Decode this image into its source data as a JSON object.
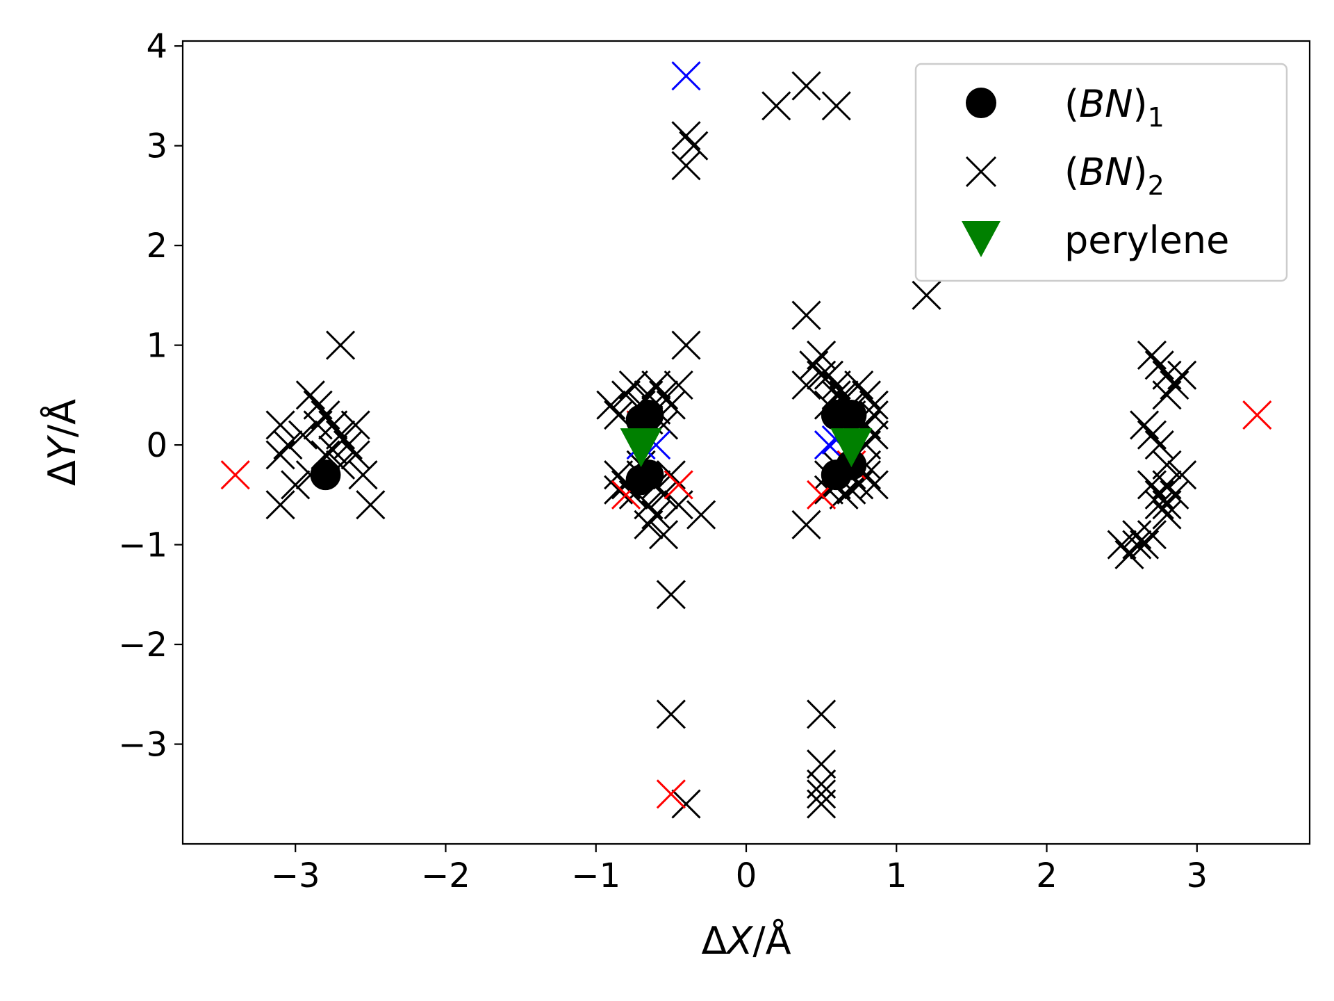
{
  "chart_data": {
    "type": "scatter",
    "xlabel": {
      "prefix": "Δ",
      "var": "X",
      "unit": "/Å"
    },
    "ylabel": {
      "prefix": "Δ",
      "var": "Y",
      "unit": "/Å"
    },
    "xlim": [
      -3.75,
      3.75
    ],
    "ylim": [
      -4.0,
      4.05
    ],
    "xticks": [
      -3,
      -2,
      -1,
      0,
      1,
      2,
      3
    ],
    "yticks": [
      -3,
      -2,
      -1,
      0,
      1,
      2,
      3,
      4
    ],
    "xtick_labels": [
      "−3",
      "−2",
      "−1",
      "0",
      "1",
      "2",
      "3"
    ],
    "ytick_labels": [
      "−3",
      "−2",
      "−1",
      "0",
      "1",
      "2",
      "3",
      "4"
    ],
    "grid": false,
    "legend_position": "top-right",
    "legend": [
      {
        "series": "bn1",
        "base": "(",
        "it": "BN",
        "close": ")",
        "sub": "1"
      },
      {
        "series": "bn2",
        "base": "(",
        "it": "BN",
        "close": ")",
        "sub": "2"
      },
      {
        "series": "perylene",
        "text": "perylene"
      }
    ],
    "colors": {
      "black": "#000000",
      "red": "#ff0000",
      "blue": "#0000ff",
      "green": "#008000"
    },
    "series": [
      {
        "id": "bn2",
        "marker": "x",
        "color": "#000000",
        "points": [
          [
            -3.1,
            0.2
          ],
          [
            -3.05,
            0.0
          ],
          [
            -2.95,
            0.1
          ],
          [
            -2.9,
            0.5
          ],
          [
            -2.85,
            0.4
          ],
          [
            -2.8,
            0.3
          ],
          [
            -2.75,
            0.2
          ],
          [
            -2.7,
            0.1
          ],
          [
            -2.65,
            0.0
          ],
          [
            -2.6,
            -0.1
          ],
          [
            -2.55,
            -0.3
          ],
          [
            -2.6,
            0.2
          ],
          [
            -2.7,
            -0.2
          ],
          [
            -2.8,
            -0.1
          ],
          [
            -2.85,
            0.2
          ],
          [
            -3.0,
            -0.4
          ],
          [
            -3.1,
            -0.6
          ],
          [
            -2.5,
            -0.6
          ],
          [
            -2.7,
            1.0
          ],
          [
            -2.9,
            -0.3
          ],
          [
            -2.75,
            -0.05
          ],
          [
            -3.1,
            -0.1
          ],
          [
            -0.9,
            0.4
          ],
          [
            -0.85,
            0.3
          ],
          [
            -0.8,
            0.5
          ],
          [
            -0.75,
            0.6
          ],
          [
            -0.7,
            0.4
          ],
          [
            -0.65,
            0.5
          ],
          [
            -0.6,
            0.6
          ],
          [
            -0.55,
            0.5
          ],
          [
            -0.5,
            0.4
          ],
          [
            -0.45,
            0.6
          ],
          [
            -0.65,
            0.25
          ],
          [
            -0.6,
            0.35
          ],
          [
            -0.55,
            0.2
          ],
          [
            -0.85,
            -0.3
          ],
          [
            -0.8,
            -0.4
          ],
          [
            -0.75,
            -0.5
          ],
          [
            -0.7,
            -0.3
          ],
          [
            -0.65,
            -0.6
          ],
          [
            -0.6,
            -0.4
          ],
          [
            -0.55,
            -0.5
          ],
          [
            -0.6,
            -0.7
          ],
          [
            -0.65,
            -0.8
          ],
          [
            -0.55,
            -0.9
          ],
          [
            -0.5,
            -0.3
          ],
          [
            -0.45,
            -0.6
          ],
          [
            -0.3,
            -0.7
          ],
          [
            -0.85,
            -0.45
          ],
          [
            -0.7,
            -0.2
          ],
          [
            -0.4,
            1.0
          ],
          [
            -0.4,
            3.1
          ],
          [
            -0.35,
            3.0
          ],
          [
            -0.4,
            2.8
          ],
          [
            -0.5,
            -1.5
          ],
          [
            -0.5,
            -2.7
          ],
          [
            -0.4,
            -3.6
          ],
          [
            0.2,
            3.4
          ],
          [
            0.4,
            3.6
          ],
          [
            0.6,
            3.4
          ],
          [
            0.4,
            1.3
          ],
          [
            0.4,
            0.6
          ],
          [
            0.45,
            0.8
          ],
          [
            0.5,
            0.9
          ],
          [
            0.55,
            0.7
          ],
          [
            0.6,
            0.6
          ],
          [
            0.65,
            0.5
          ],
          [
            0.7,
            0.4
          ],
          [
            0.75,
            0.6
          ],
          [
            0.8,
            0.5
          ],
          [
            0.85,
            0.4
          ],
          [
            0.8,
            0.2
          ],
          [
            0.85,
            0.3
          ],
          [
            0.8,
            0.0
          ],
          [
            0.85,
            0.1
          ],
          [
            0.7,
            0.3
          ],
          [
            0.6,
            0.5
          ],
          [
            0.5,
            0.7
          ],
          [
            0.55,
            0.4
          ],
          [
            0.65,
            0.45
          ],
          [
            0.55,
            -0.3
          ],
          [
            0.6,
            -0.4
          ],
          [
            0.65,
            -0.5
          ],
          [
            0.7,
            -0.3
          ],
          [
            0.75,
            -0.4
          ],
          [
            0.8,
            -0.3
          ],
          [
            0.85,
            -0.4
          ],
          [
            0.6,
            -0.2
          ],
          [
            0.7,
            -0.45
          ],
          [
            0.4,
            -0.8
          ],
          [
            0.8,
            -0.2
          ],
          [
            0.55,
            -0.45
          ],
          [
            0.5,
            -2.7
          ],
          [
            0.5,
            -3.2
          ],
          [
            0.5,
            -3.4
          ],
          [
            0.5,
            -3.5
          ],
          [
            0.5,
            -3.6
          ],
          [
            1.2,
            1.5
          ],
          [
            2.7,
            0.9
          ],
          [
            2.75,
            0.8
          ],
          [
            2.8,
            0.7
          ],
          [
            2.85,
            0.6
          ],
          [
            2.9,
            0.7
          ],
          [
            2.8,
            0.5
          ],
          [
            2.65,
            0.2
          ],
          [
            2.7,
            0.1
          ],
          [
            2.75,
            0.0
          ],
          [
            2.8,
            -0.2
          ],
          [
            2.9,
            -0.3
          ],
          [
            2.7,
            -0.4
          ],
          [
            2.75,
            -0.5
          ],
          [
            2.8,
            -0.6
          ],
          [
            2.85,
            -0.5
          ],
          [
            2.8,
            -0.7
          ],
          [
            2.75,
            -0.6
          ],
          [
            2.7,
            -0.9
          ],
          [
            2.65,
            -1.0
          ],
          [
            2.6,
            -1.0
          ],
          [
            2.55,
            -1.1
          ],
          [
            2.5,
            -1.0
          ],
          [
            2.6,
            -0.9
          ],
          [
            2.8,
            -0.4
          ]
        ]
      },
      {
        "id": "red",
        "marker": "x",
        "color": "#ff0000",
        "points": [
          [
            -3.4,
            -0.3
          ],
          [
            -0.7,
            0.2
          ],
          [
            -0.8,
            -0.5
          ],
          [
            -0.45,
            -0.4
          ],
          [
            -0.5,
            -3.5
          ],
          [
            0.5,
            -0.5
          ],
          [
            0.7,
            -0.2
          ],
          [
            3.4,
            0.3
          ]
        ]
      },
      {
        "id": "blue",
        "marker": "x",
        "color": "#0000ff",
        "points": [
          [
            -0.4,
            3.7
          ],
          [
            -0.7,
            0.0
          ],
          [
            -0.6,
            0.0
          ],
          [
            0.55,
            0.0
          ],
          [
            0.6,
            0.05
          ]
        ]
      },
      {
        "id": "bn1",
        "marker": "o",
        "color": "#000000",
        "points": [
          [
            -2.8,
            -0.3
          ],
          [
            -0.65,
            0.3
          ],
          [
            -0.7,
            0.25
          ],
          [
            -0.65,
            -0.3
          ],
          [
            -0.7,
            -0.35
          ],
          [
            0.6,
            0.3
          ],
          [
            0.7,
            0.3
          ],
          [
            0.6,
            -0.3
          ],
          [
            0.7,
            -0.2
          ]
        ]
      },
      {
        "id": "perylene",
        "marker": "v",
        "color": "#008000",
        "points": [
          [
            -0.7,
            0.0
          ],
          [
            0.7,
            0.0
          ]
        ]
      }
    ]
  }
}
